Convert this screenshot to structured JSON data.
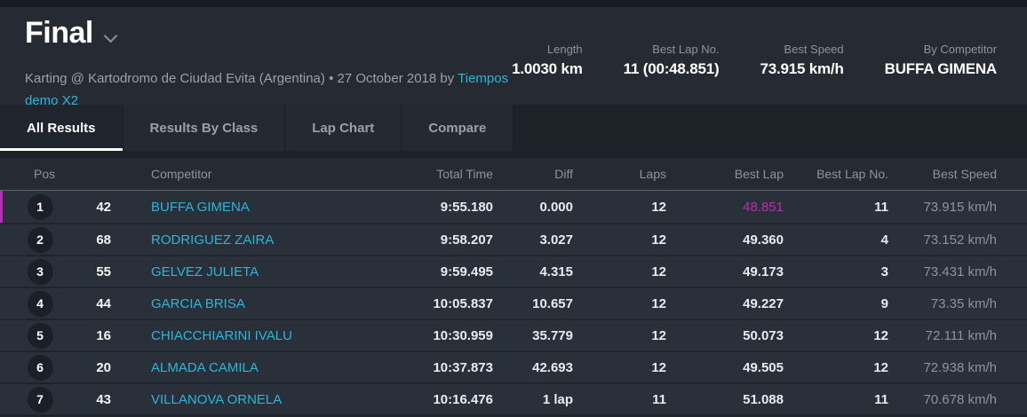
{
  "header": {
    "title": "Final",
    "subtitle_text": "Karting @ Kartodromo de Ciudad Evita (Argentina) • 27 October 2018 by ",
    "subtitle_link": "Tiempos demo X2",
    "stats": [
      {
        "label": "Length",
        "value": "1.0030 km"
      },
      {
        "label": "Best Lap No.",
        "value": "11 (00:48.851)"
      },
      {
        "label": "Best Speed",
        "value": "73.915 km/h"
      },
      {
        "label": "By Competitor",
        "value": "BUFFA GIMENA"
      }
    ]
  },
  "tabs": [
    {
      "label": "All Results",
      "active": true
    },
    {
      "label": "Results By Class",
      "active": false
    },
    {
      "label": "Lap Chart",
      "active": false
    },
    {
      "label": "Compare",
      "active": false
    }
  ],
  "table": {
    "columns": {
      "pos": "Pos",
      "competitor": "Competitor",
      "total_time": "Total Time",
      "diff": "Diff",
      "laps": "Laps",
      "best_lap": "Best Lap",
      "best_lap_no": "Best Lap No.",
      "best_speed": "Best Speed"
    },
    "rows": [
      {
        "pos": "1",
        "kart": "42",
        "competitor": "BUFFA GIMENA",
        "total_time": "9:55.180",
        "diff": "0.000",
        "laps": "12",
        "best_lap": "48.851",
        "best_lap_no": "11",
        "best_speed": "73.915 km/h",
        "highlight": true
      },
      {
        "pos": "2",
        "kart": "68",
        "competitor": "RODRIGUEZ ZAIRA",
        "total_time": "9:58.207",
        "diff": "3.027",
        "laps": "12",
        "best_lap": "49.360",
        "best_lap_no": "4",
        "best_speed": "73.152 km/h",
        "highlight": false
      },
      {
        "pos": "3",
        "kart": "55",
        "competitor": "GELVEZ JULIETA",
        "total_time": "9:59.495",
        "diff": "4.315",
        "laps": "12",
        "best_lap": "49.173",
        "best_lap_no": "3",
        "best_speed": "73.431 km/h",
        "highlight": false
      },
      {
        "pos": "4",
        "kart": "44",
        "competitor": "GARCIA BRISA",
        "total_time": "10:05.837",
        "diff": "10.657",
        "laps": "12",
        "best_lap": "49.227",
        "best_lap_no": "9",
        "best_speed": "73.35 km/h",
        "highlight": false
      },
      {
        "pos": "5",
        "kart": "16",
        "competitor": "CHIACCHIARINI IVALU",
        "total_time": "10:30.959",
        "diff": "35.779",
        "laps": "12",
        "best_lap": "50.073",
        "best_lap_no": "12",
        "best_speed": "72.111 km/h",
        "highlight": false
      },
      {
        "pos": "6",
        "kart": "20",
        "competitor": "ALMADA CAMILA",
        "total_time": "10:37.873",
        "diff": "42.693",
        "laps": "12",
        "best_lap": "49.505",
        "best_lap_no": "12",
        "best_speed": "72.938 km/h",
        "highlight": false
      },
      {
        "pos": "7",
        "kart": "43",
        "competitor": "VILLANOVA ORNELA",
        "total_time": "10:16.476",
        "diff": "1 lap",
        "laps": "11",
        "best_lap": "51.088",
        "best_lap_no": "11",
        "best_speed": "70.678 km/h",
        "highlight": false
      }
    ]
  },
  "colors": {
    "accent_teal": "#2bb6d9",
    "accent_magenta": "#b62fb6",
    "background_dark": "#262b33",
    "row_background": "#2a303a"
  }
}
